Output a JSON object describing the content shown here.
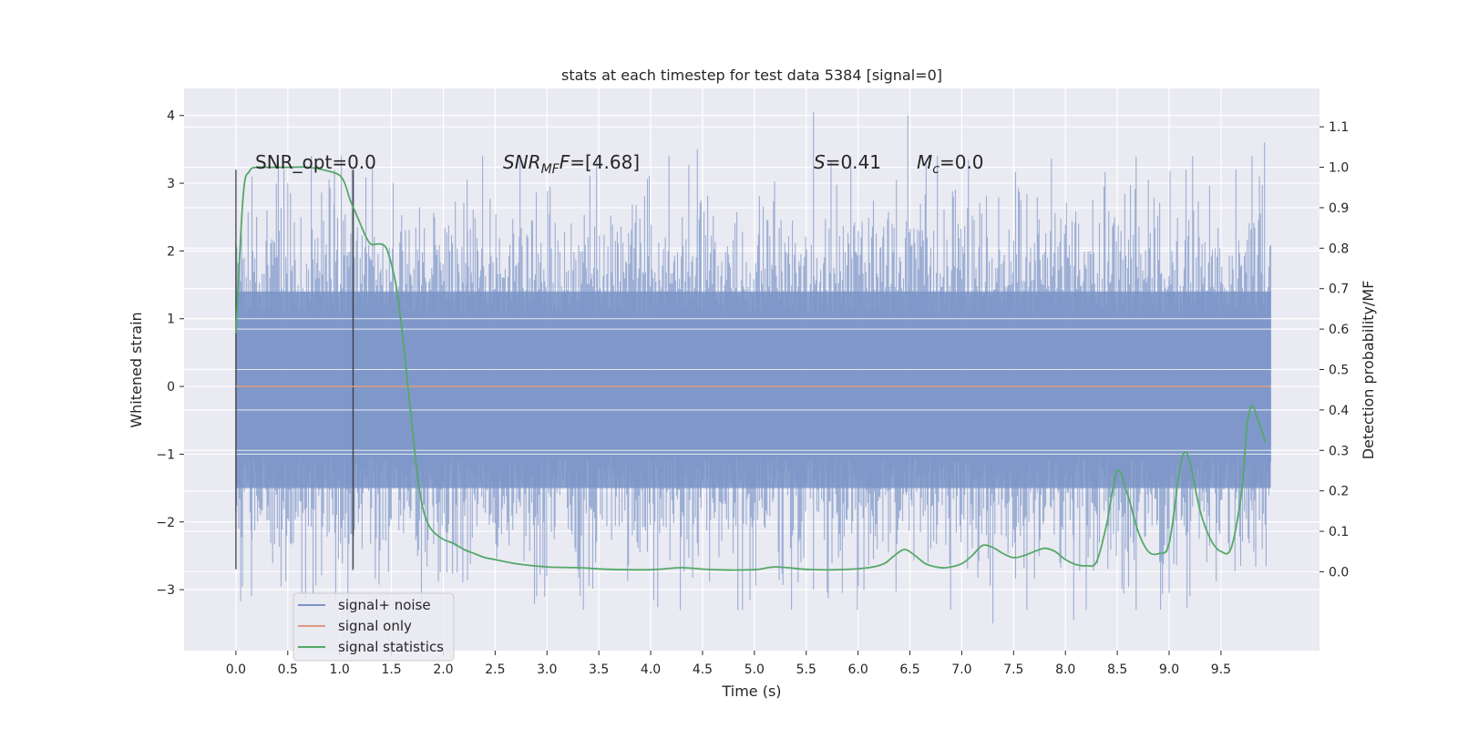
{
  "chart_data": {
    "type": "line",
    "title": "stats at each timestep for test data 5384 [signal=0]",
    "xlabel": "Time (s)",
    "ylabel_left": "Whitened strain",
    "ylabel_right": "Detection probability/MF",
    "xlim": [
      -0.5,
      10.45
    ],
    "ylim_left": [
      -3.9,
      4.4
    ],
    "ylim_right": [
      -0.195,
      1.195
    ],
    "x_ticks": [
      "0.0",
      "0.5",
      "1.0",
      "1.5",
      "2.0",
      "2.5",
      "3.0",
      "3.5",
      "4.0",
      "4.5",
      "5.0",
      "5.5",
      "6.0",
      "6.5",
      "7.0",
      "7.5",
      "8.0",
      "8.5",
      "9.0",
      "9.5"
    ],
    "y_left_ticks": [
      "4",
      "3",
      "2",
      "1",
      "0",
      "−1",
      "−2",
      "−3"
    ],
    "y_right_ticks": [
      "1.1",
      "1.0",
      "0.9",
      "0.8",
      "0.7",
      "0.6",
      "0.5",
      "0.4",
      "0.3",
      "0.2",
      "0.1",
      "0.0"
    ],
    "annotations": {
      "snr_opt": "SNR_opt=0.0",
      "snr_mf": "SNR",
      "snr_mf_sub": "MF",
      "snr_mf_value": "=[4.68]",
      "s_label": "S",
      "s_value": "=0.41",
      "mc_label": "M",
      "mc_sub": "c",
      "mc_value": "=0.0"
    },
    "vertical_markers": [
      0.0,
      1.13
    ],
    "series": [
      {
        "name": "signal+ noise",
        "color": "#7a94c7",
        "description": "whitened strain noise, t 0–10 s",
        "envelope_core": [
          -1.5,
          1.4
        ],
        "peaks": [
          [
            0.08,
            1.9
          ],
          [
            0.3,
            2.6
          ],
          [
            0.5,
            3.0
          ],
          [
            0.95,
            3.2
          ],
          [
            1.12,
            3.2
          ],
          [
            2.23,
            3.05
          ],
          [
            2.74,
            3.35
          ],
          [
            3.03,
            2.95
          ],
          [
            4.45,
            3.5
          ],
          [
            5.57,
            4.05
          ],
          [
            6.37,
            3.05
          ],
          [
            6.48,
            4.0
          ],
          [
            7.57,
            2.75
          ],
          [
            8.8,
            3.05
          ],
          [
            9.92,
            3.6
          ]
        ],
        "troughs": [
          [
            0.15,
            -3.1
          ],
          [
            1.08,
            -3.6
          ],
          [
            2.9,
            -3.1
          ],
          [
            3.32,
            -3.1
          ],
          [
            4.03,
            -3.15
          ],
          [
            5.57,
            -3.0
          ],
          [
            7.3,
            -3.5
          ],
          [
            8.08,
            -3.45
          ],
          [
            9.0,
            -3.05
          ],
          [
            9.2,
            -3.1
          ]
        ]
      },
      {
        "name": "signal only",
        "color": "#dd9a7e",
        "values_x": [
          0.0,
          9.98
        ],
        "values_y": [
          0.0,
          0.0
        ]
      },
      {
        "name": "signal statistics",
        "color": "#55a868",
        "x": [
          0.0,
          0.07,
          0.13,
          0.2,
          0.3,
          0.5,
          0.7,
          0.9,
          1.0,
          1.05,
          1.1,
          1.15,
          1.2,
          1.25,
          1.3,
          1.35,
          1.4,
          1.45,
          1.5,
          1.55,
          1.6,
          1.65,
          1.7,
          1.75,
          1.8,
          1.85,
          1.9,
          2.0,
          2.1,
          2.2,
          2.3,
          2.4,
          2.5,
          2.7,
          3.0,
          3.3,
          3.6,
          4.0,
          4.3,
          4.6,
          5.0,
          5.2,
          5.5,
          5.8,
          6.1,
          6.25,
          6.35,
          6.45,
          6.55,
          6.65,
          6.75,
          6.85,
          7.0,
          7.1,
          7.2,
          7.3,
          7.4,
          7.5,
          7.6,
          7.7,
          7.8,
          7.9,
          8.0,
          8.1,
          8.2,
          8.3,
          8.4,
          8.5,
          8.6,
          8.7,
          8.8,
          8.9,
          9.0,
          9.1,
          9.15,
          9.2,
          9.3,
          9.4,
          9.5,
          9.6,
          9.7,
          9.75,
          9.8,
          9.85,
          9.93
        ],
        "y": [
          0.59,
          0.93,
          0.99,
          1.0,
          1.0,
          1.0,
          1.0,
          0.99,
          0.98,
          0.96,
          0.92,
          0.89,
          0.86,
          0.83,
          0.81,
          0.81,
          0.81,
          0.8,
          0.76,
          0.7,
          0.6,
          0.48,
          0.36,
          0.24,
          0.16,
          0.12,
          0.1,
          0.08,
          0.07,
          0.055,
          0.045,
          0.035,
          0.03,
          0.02,
          0.012,
          0.01,
          0.006,
          0.005,
          0.01,
          0.005,
          0.005,
          0.012,
          0.006,
          0.005,
          0.01,
          0.02,
          0.04,
          0.055,
          0.04,
          0.02,
          0.012,
          0.01,
          0.02,
          0.04,
          0.065,
          0.06,
          0.045,
          0.035,
          0.04,
          0.05,
          0.058,
          0.05,
          0.03,
          0.018,
          0.015,
          0.025,
          0.12,
          0.25,
          0.19,
          0.1,
          0.05,
          0.045,
          0.07,
          0.25,
          0.295,
          0.27,
          0.15,
          0.08,
          0.05,
          0.06,
          0.2,
          0.36,
          0.41,
          0.38,
          0.32
        ]
      }
    ],
    "legend": [
      "signal+ noise",
      "signal only",
      "signal statistics"
    ],
    "legend_position": "lower-left",
    "grid": true,
    "background_color": "#eaeaf2"
  }
}
